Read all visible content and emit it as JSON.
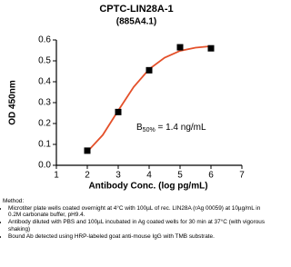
{
  "chart_data": {
    "type": "scatter",
    "title": "CPTC-LIN28A-1",
    "subtitle": "(885A4.1)",
    "x_label": "Antibody Conc. (log pg/mL)",
    "y_label": "OD 450nm",
    "xlim": [
      1,
      7
    ],
    "xticks": [
      1,
      2,
      3,
      4,
      5,
      6,
      7
    ],
    "ylim": [
      0,
      0.6
    ],
    "yticks": [
      {
        "value": 0,
        "label": "0.0"
      },
      0.1,
      0.2,
      0.3,
      0.4,
      0.5,
      0.6
    ],
    "series": [
      {
        "x": [
          2,
          3,
          4,
          5,
          6
        ],
        "values": [
          0.07,
          0.255,
          0.455,
          0.565,
          0.56
        ],
        "color": "#000000",
        "marker": "square"
      },
      {
        "x": [
          2,
          2.5,
          3,
          3.5,
          4,
          4.5,
          5,
          5.5,
          6
        ],
        "values": [
          0.065,
          0.145,
          0.262,
          0.375,
          0.46,
          0.515,
          0.548,
          0.563,
          0.57
        ],
        "color": "#e4502a",
        "marker": "line"
      }
    ],
    "annotation": {
      "text": "B",
      "subscript": "50%",
      "rest": " = 1.4 ng/mL"
    }
  },
  "method": {
    "heading": "Method:",
    "items": [
      "Microtiter plate wells coated overnight at 4°C  with 100µL of rec. LIN28A (rAg 00059) at 10µg/mL in 0.2M carbonate buffer, pH9.4.",
      "Antibody diluted with PBS and 100µL incubated in Ag coated wells for 30 min at 37°C (with vigorous shaking)",
      "Bound Ab detected using HRP-labeled goat anti-mouse IgG with TMB substrate."
    ]
  }
}
